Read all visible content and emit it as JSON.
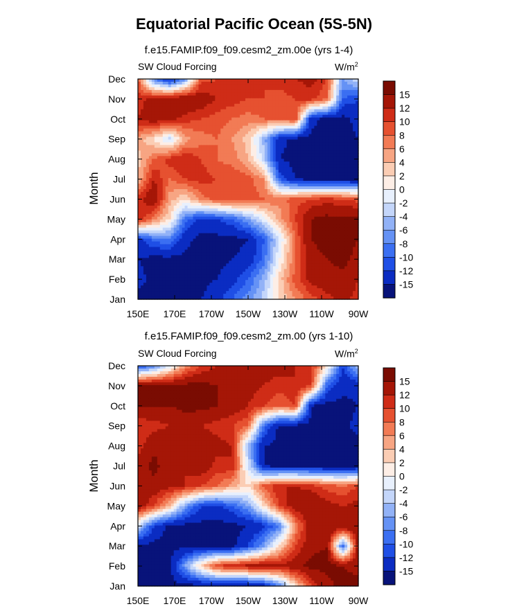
{
  "title": "Equatorial Pacific Ocean (5S-5N)",
  "colors": {
    "levels_palette": [
      "#08137a",
      "#0b2cc2",
      "#1f4fe6",
      "#3b6ff2",
      "#6592f5",
      "#92b2f7",
      "#c4d6fa",
      "#e8f0fd",
      "#fdeee6",
      "#fbcdb4",
      "#f7a583",
      "#f27b55",
      "#e65130",
      "#cf2c17",
      "#a51607",
      "#7a0c02"
    ]
  },
  "chart_data": [
    {
      "type": "heatmap",
      "subtitle": "f.e15.FAMIP.f09_f09.cesm2_zm.00e (yrs 1-4)",
      "variable": "SW Cloud Forcing",
      "units": "W/m",
      "units_sup": "2",
      "ylabel": "Month",
      "x_ticks": [
        "150E",
        "170E",
        "170W",
        "150W",
        "130W",
        "110W",
        "90W"
      ],
      "x_values": [
        150,
        170,
        190,
        210,
        230,
        250,
        270
      ],
      "y_ticks": [
        "Jan",
        "Feb",
        "Mar",
        "Apr",
        "May",
        "Jun",
        "Jul",
        "Aug",
        "Sep",
        "Oct",
        "Nov",
        "Dec"
      ],
      "colorbar_labels": [
        "15",
        "12",
        "10",
        "8",
        "6",
        "4",
        "2",
        "0",
        "-2",
        "-4",
        "-6",
        "-8",
        "-10",
        "-12",
        "-15"
      ],
      "levels": [
        -15,
        -12,
        -10,
        -8,
        -6,
        -4,
        -2,
        0,
        2,
        4,
        6,
        8,
        10,
        12,
        15
      ],
      "grid": [
        [
          -16,
          -16,
          -16,
          -16,
          -15,
          -13,
          -10,
          -7,
          -3,
          2,
          6,
          9,
          11,
          13,
          11
        ],
        [
          -14,
          -16,
          -15,
          -16,
          -16,
          -15,
          -13,
          -10,
          -5,
          3,
          9,
          13,
          14,
          14,
          12
        ],
        [
          -15,
          -16,
          -16,
          -16,
          -16,
          -16,
          -15,
          -14,
          -9,
          0,
          8,
          14,
          15,
          16,
          14
        ],
        [
          -13,
          -9,
          -8,
          -14,
          -16,
          -16,
          -16,
          -15,
          -10,
          -2,
          8,
          15,
          16,
          16,
          15
        ],
        [
          12,
          7,
          2,
          -9,
          -13,
          -12,
          -10,
          -6,
          -1,
          5,
          10,
          15,
          16,
          16,
          16
        ],
        [
          11,
          15,
          5,
          2,
          7,
          9,
          10,
          9,
          8,
          7,
          9,
          10,
          11,
          10,
          9
        ],
        [
          4,
          12,
          8,
          10,
          11,
          10,
          10,
          9,
          6,
          -10,
          -15,
          -16,
          -16,
          -16,
          -16
        ],
        [
          3,
          8,
          11,
          12,
          10,
          8,
          7,
          4,
          -3,
          -15,
          -16,
          -16,
          -16,
          -16,
          -16
        ],
        [
          5,
          2,
          -3,
          5,
          7,
          8,
          6,
          3,
          -5,
          -14,
          -16,
          -16,
          -16,
          -16,
          -15
        ],
        [
          12,
          14,
          13,
          11,
          10,
          9,
          8,
          7,
          8,
          8,
          10,
          -14,
          -16,
          -16,
          -14
        ],
        [
          11,
          13,
          14,
          15,
          14,
          12,
          11,
          10,
          10,
          9,
          10,
          11,
          8,
          -10,
          -12
        ],
        [
          9,
          -8,
          -14,
          -7,
          9,
          10,
          11,
          10,
          10,
          11,
          12,
          13,
          10,
          -6,
          -2
        ]
      ]
    },
    {
      "type": "heatmap",
      "subtitle": "f.e15.FAMIP.f09_f09.cesm2_zm.00 (yrs 1-10)",
      "variable": "SW Cloud Forcing",
      "units": "W/m",
      "units_sup": "2",
      "ylabel": "Month",
      "x_ticks": [
        "150E",
        "170E",
        "170W",
        "150W",
        "130W",
        "110W",
        "90W"
      ],
      "x_values": [
        150,
        170,
        190,
        210,
        230,
        250,
        270
      ],
      "y_ticks": [
        "Jan",
        "Feb",
        "Mar",
        "Apr",
        "May",
        "Jun",
        "Jul",
        "Aug",
        "Sep",
        "Oct",
        "Nov",
        "Dec"
      ],
      "colorbar_labels": [
        "15",
        "12",
        "10",
        "8",
        "6",
        "4",
        "2",
        "0",
        "-2",
        "-4",
        "-6",
        "-8",
        "-10",
        "-12",
        "-15"
      ],
      "levels": [
        -15,
        -12,
        -10,
        -8,
        -6,
        -4,
        -2,
        0,
        2,
        4,
        6,
        8,
        10,
        12,
        15
      ],
      "grid": [
        [
          -16,
          -16,
          -16,
          -16,
          -16,
          -16,
          -16,
          -16,
          -14,
          -8,
          2,
          10,
          14,
          16,
          16
        ],
        [
          -16,
          -16,
          -16,
          -6,
          3,
          10,
          12,
          13,
          14,
          13,
          14,
          16,
          16,
          15,
          14
        ],
        [
          -16,
          -16,
          -16,
          -16,
          -16,
          -16,
          -16,
          -12,
          -6,
          2,
          10,
          14,
          15,
          -10,
          14
        ],
        [
          -2,
          -12,
          -16,
          -16,
          -16,
          -16,
          -16,
          -15,
          -13,
          -8,
          6,
          14,
          15,
          15,
          15
        ],
        [
          14,
          10,
          4,
          -6,
          -12,
          -13,
          -10,
          -6,
          2,
          10,
          14,
          15,
          13,
          12,
          13
        ],
        [
          14,
          14,
          13,
          12,
          10,
          8,
          5,
          2,
          9,
          12,
          12,
          11,
          9,
          8,
          10
        ],
        [
          13,
          16,
          13,
          12,
          14,
          11,
          12,
          -2,
          -15,
          -16,
          -16,
          -16,
          -16,
          -16,
          -16
        ],
        [
          11,
          14,
          15,
          13,
          15,
          13,
          12,
          -5,
          -15,
          -16,
          -16,
          -16,
          -16,
          -16,
          -16
        ],
        [
          10,
          11,
          12,
          13,
          12,
          11,
          10,
          8,
          -9,
          -16,
          -16,
          -16,
          -16,
          -16,
          -14
        ],
        [
          15,
          15,
          15,
          16,
          16,
          15,
          14,
          12,
          10,
          8,
          10,
          -15,
          -16,
          -16,
          -15
        ],
        [
          16,
          16,
          16,
          16,
          16,
          15,
          14,
          13,
          12,
          11,
          12,
          10,
          -10,
          -14,
          -14
        ],
        [
          -12,
          -8,
          -2,
          6,
          10,
          12,
          13,
          12,
          13,
          13,
          12,
          11,
          2,
          -12,
          -4
        ]
      ]
    }
  ]
}
